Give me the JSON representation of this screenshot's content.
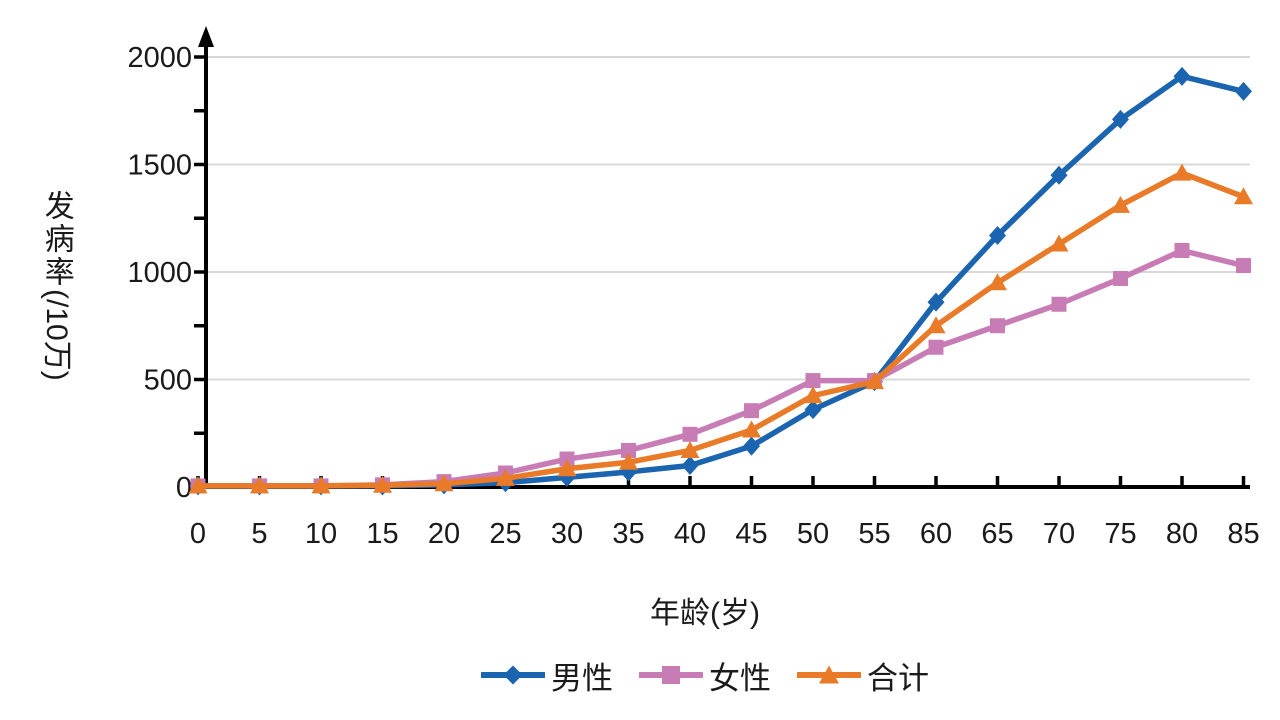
{
  "chart_data": {
    "type": "line",
    "title": "",
    "xlabel": "年龄(岁)",
    "ylabel": "发病率(/10万)",
    "ylabel_cjk_part": "发病率",
    "ylabel_rotated_part": "(/10万)",
    "categories": [
      0,
      5,
      10,
      15,
      20,
      25,
      30,
      35,
      40,
      45,
      50,
      55,
      60,
      65,
      70,
      75,
      80,
      85
    ],
    "y_ticks": [
      0,
      500,
      1000,
      1500,
      2000
    ],
    "y_minor_ticks": [
      250,
      750,
      1250,
      1750
    ],
    "ylim": [
      0,
      2100
    ],
    "grid": "horizontal-major",
    "legend_position": "bottom",
    "series": [
      {
        "key": "male",
        "name": "男性",
        "marker": "diamond",
        "color": "#1B64AF",
        "values": [
          5,
          5,
          5,
          5,
          10,
          20,
          45,
          70,
          100,
          190,
          360,
          490,
          860,
          1170,
          1450,
          1710,
          1910,
          1840
        ]
      },
      {
        "key": "female",
        "name": "女性",
        "marker": "square",
        "color": "#C87CB5",
        "values": [
          5,
          5,
          5,
          10,
          25,
          65,
          130,
          170,
          245,
          355,
          495,
          495,
          650,
          750,
          850,
          970,
          1100,
          1030
        ]
      },
      {
        "key": "total",
        "name": "合计",
        "marker": "triangle",
        "color": "#E87A28",
        "values": [
          5,
          5,
          5,
          8,
          15,
          40,
          85,
          115,
          170,
          265,
          425,
          490,
          750,
          950,
          1130,
          1310,
          1460,
          1350
        ]
      }
    ]
  },
  "colors": {
    "grid": "#D8D8D8",
    "axis": "#000000",
    "text": "#1A1A1A",
    "background": "#FFFFFF"
  }
}
